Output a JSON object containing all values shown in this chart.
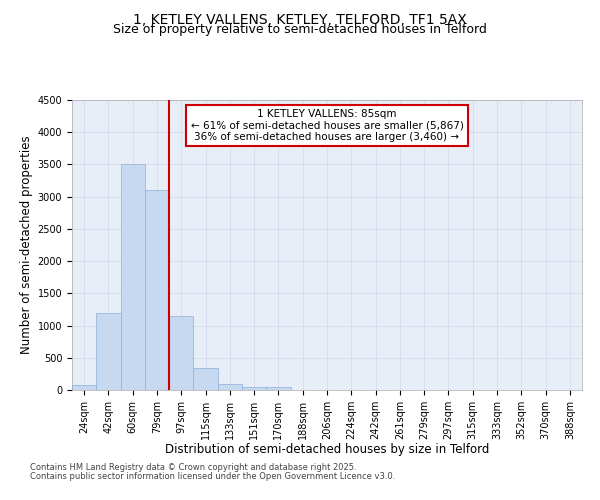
{
  "title_line1": "1, KETLEY VALLENS, KETLEY, TELFORD, TF1 5AX",
  "title_line2": "Size of property relative to semi-detached houses in Telford",
  "xlabel": "Distribution of semi-detached houses by size in Telford",
  "ylabel": "Number of semi-detached properties",
  "categories": [
    "24sqm",
    "42sqm",
    "60sqm",
    "79sqm",
    "97sqm",
    "115sqm",
    "133sqm",
    "151sqm",
    "170sqm",
    "188sqm",
    "206sqm",
    "224sqm",
    "242sqm",
    "261sqm",
    "279sqm",
    "297sqm",
    "315sqm",
    "333sqm",
    "352sqm",
    "370sqm",
    "388sqm"
  ],
  "values": [
    75,
    1200,
    3510,
    3100,
    1150,
    340,
    100,
    50,
    50,
    0,
    0,
    0,
    0,
    0,
    0,
    0,
    0,
    0,
    0,
    0,
    0
  ],
  "bar_color": "#c6d9f0",
  "bar_edge_color": "#8ab0d8",
  "vline_color": "#cc0000",
  "vline_x": 3.5,
  "annotation_title": "1 KETLEY VALLENS: 85sqm",
  "annotation_line1": "← 61% of semi-detached houses are smaller (5,867)",
  "annotation_line2": "36% of semi-detached houses are larger (3,460) →",
  "annotation_box_color": "#cc0000",
  "ylim": [
    0,
    4500
  ],
  "yticks": [
    0,
    500,
    1000,
    1500,
    2000,
    2500,
    3000,
    3500,
    4000,
    4500
  ],
  "grid_color": "#d0d8ec",
  "bg_color": "#e8eef8",
  "footer_line1": "Contains HM Land Registry data © Crown copyright and database right 2025.",
  "footer_line2": "Contains public sector information licensed under the Open Government Licence v3.0.",
  "title_fontsize": 10,
  "subtitle_fontsize": 9,
  "axis_label_fontsize": 8.5,
  "tick_fontsize": 7,
  "annotation_fontsize": 7.5,
  "footer_fontsize": 6
}
